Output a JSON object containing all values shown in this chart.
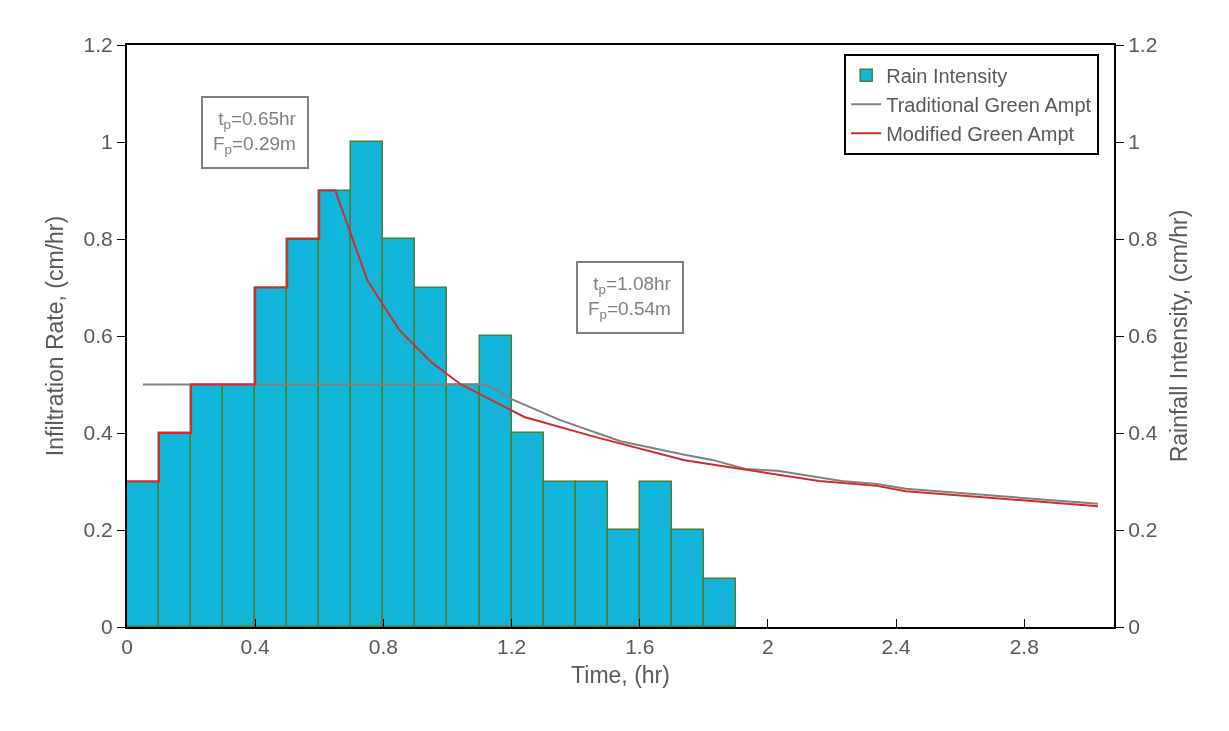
{
  "chart_data": {
    "type": "line",
    "xlabel": "Time, (hr)",
    "ylabel": "Infiltration Rate, (cm/hr)",
    "y2label": "Rainfall Intensity, (cm/hr)",
    "xlim": [
      0,
      3.08
    ],
    "xticks": [
      0,
      0.4,
      0.8,
      1.2,
      1.6,
      2,
      2.4,
      2.8
    ],
    "ylim": [
      0,
      1.2
    ],
    "yticks": [
      0,
      0.2,
      0.4,
      0.6,
      0.8,
      1,
      1.2
    ],
    "y2lim": [
      0,
      1.2
    ],
    "y2ticks": [
      0,
      0.2,
      0.4,
      0.6,
      0.8,
      1,
      1.2
    ],
    "series": [
      {
        "name": "Rain Intensity",
        "type": "bar",
        "axis": "y2",
        "color": "#12b6d8",
        "x": [
          0.05,
          0.15,
          0.25,
          0.35,
          0.45,
          0.55,
          0.65,
          0.75,
          0.85,
          0.95,
          1.05,
          1.15,
          1.25,
          1.35,
          1.45,
          1.55,
          1.65,
          1.75,
          1.85
        ],
        "values": [
          0.3,
          0.4,
          0.5,
          0.5,
          0.7,
          0.8,
          0.9,
          1.0,
          0.8,
          0.7,
          0.5,
          0.6,
          0.4,
          0.3,
          0.3,
          0.2,
          0.3,
          0.2,
          0.1
        ]
      },
      {
        "name": "Traditional Green Ampt",
        "color": "#808080",
        "x": [
          0.05,
          1.12,
          1.2,
          1.35,
          1.54,
          1.74,
          1.83,
          1.93,
          2.03,
          2.23,
          2.34,
          2.43,
          3.03
        ],
        "values": [
          0.5,
          0.5,
          0.47,
          0.427,
          0.383,
          0.355,
          0.344,
          0.326,
          0.322,
          0.301,
          0.295,
          0.285,
          0.254
        ]
      },
      {
        "name": "Modified Green Ampt",
        "color": "#d22b2b",
        "x": [
          0,
          0.1,
          0.1,
          0.2,
          0.2,
          0.4,
          0.4,
          0.5,
          0.5,
          0.6,
          0.6,
          0.65,
          0.75,
          0.85,
          0.95,
          1.04,
          1.24,
          1.46,
          1.74,
          2.16,
          2.34,
          2.43,
          3.03
        ],
        "values": [
          0.3,
          0.3,
          0.4,
          0.4,
          0.5,
          0.5,
          0.7,
          0.7,
          0.8,
          0.8,
          0.9,
          0.9,
          0.715,
          0.612,
          0.546,
          0.501,
          0.433,
          0.392,
          0.344,
          0.301,
          0.291,
          0.28,
          0.249
        ]
      }
    ],
    "annotations": [
      "t$_{p}$=0.65hr\nF$_{p}$=0.29m",
      "t$_{p}$=1.08hr\nF$_{p}$=0.54m"
    ],
    "legend": "top right",
    "grid": false,
    "line_style": "solid",
    "marker": "none"
  }
}
